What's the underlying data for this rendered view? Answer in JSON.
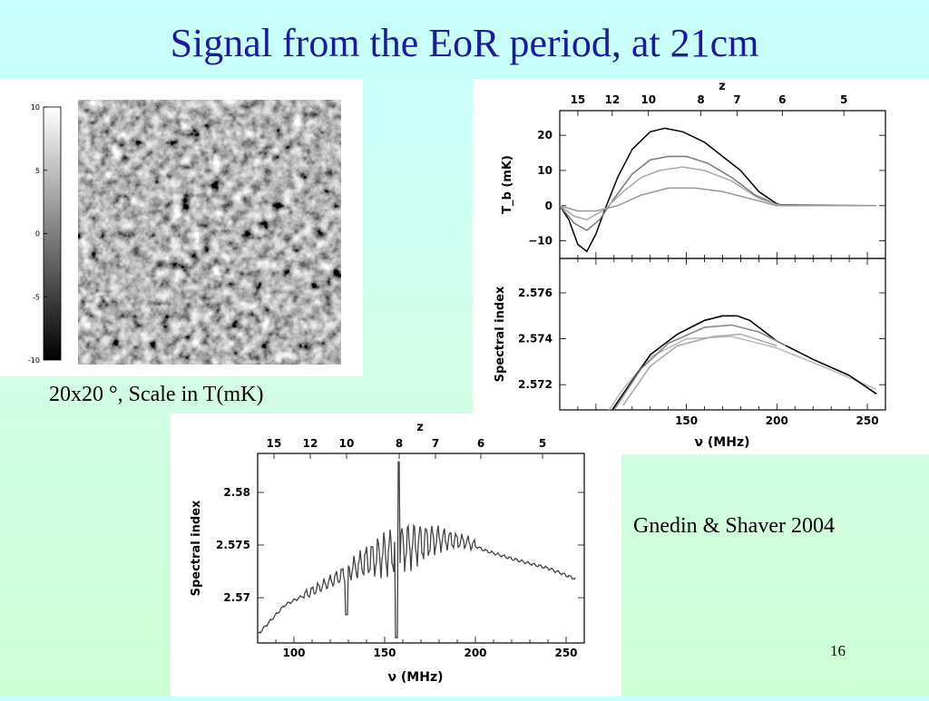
{
  "slide": {
    "title": "Signal from the EoR period, at 21cm",
    "map_caption": "20x20 °, Scale in T(mK)",
    "credit": "Gnedin & Shaver 2004",
    "page_number": "16"
  },
  "chart_data": [
    {
      "type": "heatmap",
      "colorbar": {
        "ticks": [
          "10",
          "5",
          "0",
          "-5",
          "-10"
        ],
        "range": [
          -10,
          10
        ]
      },
      "colormap": "grayscale"
    },
    {
      "type": "line",
      "top_axis": {
        "label": "z",
        "ticks": [
          "15",
          "12",
          "10",
          "8",
          "7",
          "6",
          "5"
        ],
        "tick_freqs": [
          90,
          109,
          129,
          158,
          178,
          203,
          237
        ]
      },
      "xlim": [
        80,
        260
      ],
      "ylabel": "T_b (mK)",
      "ylim": [
        -15,
        27
      ],
      "yticks": [
        "20",
        "10",
        "0",
        "−10"
      ],
      "ytick_values": [
        20,
        10,
        0,
        -10
      ],
      "series": [
        {
          "color": "#000000",
          "points": [
            [
              80,
              0
            ],
            [
              85,
              -4
            ],
            [
              90,
              -11
            ],
            [
              95,
              -13
            ],
            [
              100,
              -8
            ],
            [
              105,
              -1
            ],
            [
              112,
              8
            ],
            [
              120,
              16
            ],
            [
              130,
              21
            ],
            [
              138,
              22
            ],
            [
              148,
              21
            ],
            [
              160,
              18
            ],
            [
              170,
              14
            ],
            [
              180,
              10
            ],
            [
              190,
              4
            ],
            [
              200,
              0.5
            ],
            [
              205,
              0
            ],
            [
              255,
              0
            ]
          ]
        },
        {
          "color": "#777777",
          "points": [
            [
              80,
              0
            ],
            [
              88,
              -5
            ],
            [
              95,
              -7
            ],
            [
              102,
              -4
            ],
            [
              110,
              2
            ],
            [
              120,
              9
            ],
            [
              130,
              13
            ],
            [
              140,
              14
            ],
            [
              150,
              14
            ],
            [
              162,
              12
            ],
            [
              175,
              8
            ],
            [
              188,
              3
            ],
            [
              200,
              0.3
            ],
            [
              255,
              0
            ]
          ]
        },
        {
          "color": "#a8a8a8",
          "points": [
            [
              80,
              0
            ],
            [
              88,
              -3
            ],
            [
              95,
              -4
            ],
            [
              105,
              -1
            ],
            [
              115,
              4
            ],
            [
              125,
              8
            ],
            [
              135,
              10
            ],
            [
              148,
              11
            ],
            [
              160,
              10
            ],
            [
              175,
              7
            ],
            [
              190,
              2
            ],
            [
              202,
              0
            ],
            [
              255,
              0
            ]
          ]
        },
        {
          "color": "#999999",
          "points": [
            [
              80,
              0
            ],
            [
              90,
              -1.5
            ],
            [
              100,
              -1.5
            ],
            [
              112,
              0
            ],
            [
              125,
              3
            ],
            [
              140,
              5
            ],
            [
              155,
              5
            ],
            [
              170,
              4
            ],
            [
              185,
              2
            ],
            [
              200,
              0
            ],
            [
              255,
              0
            ]
          ]
        }
      ]
    },
    {
      "type": "line",
      "xlabel": "ν (MHz)",
      "xlim": [
        80,
        260
      ],
      "xticks": [
        "150",
        "200",
        "250"
      ],
      "xtick_values": [
        150,
        200,
        250
      ],
      "ylabel": "Spectral index",
      "ylim": [
        2.5709,
        2.5775
      ],
      "yticks": [
        "2.576",
        "2.574",
        "2.572"
      ],
      "ytick_values": [
        2.576,
        2.574,
        2.572
      ],
      "series": [
        {
          "color": "#bbbbbb",
          "points": [
            [
              102,
              2.5703
            ],
            [
              115,
              2.5718
            ],
            [
              130,
              2.5732
            ],
            [
              150,
              2.574
            ],
            [
              175,
              2.5741
            ],
            [
              200,
              2.5736
            ],
            [
              225,
              2.5728
            ],
            [
              255,
              2.5718
            ]
          ]
        },
        {
          "color": "#000000",
          "points": [
            [
              103,
              2.5702
            ],
            [
              115,
              2.5716
            ],
            [
              130,
              2.5733
            ],
            [
              145,
              2.5742
            ],
            [
              160,
              2.5748
            ],
            [
              170,
              2.575
            ],
            [
              178,
              2.575
            ],
            [
              185,
              2.5748
            ],
            [
              200,
              2.5739
            ],
            [
              220,
              2.5731
            ],
            [
              240,
              2.5724
            ],
            [
              255,
              2.5716
            ]
          ]
        },
        {
          "color": "#888888",
          "points": [
            [
              110,
              2.5709
            ],
            [
              125,
              2.5727
            ],
            [
              140,
              2.5738
            ],
            [
              160,
              2.5745
            ],
            [
              175,
              2.5746
            ],
            [
              190,
              2.5743
            ],
            [
              205,
              2.5737
            ]
          ]
        },
        {
          "color": "#aaaaaa",
          "points": [
            [
              115,
              2.5711
            ],
            [
              130,
              2.5728
            ],
            [
              145,
              2.5737
            ],
            [
              165,
              2.5741
            ],
            [
              180,
              2.5742
            ],
            [
              200,
              2.5737
            ]
          ]
        }
      ]
    },
    {
      "type": "line",
      "top_axis": {
        "label": "z",
        "ticks": [
          "15",
          "12",
          "10",
          "8",
          "7",
          "6",
          "5"
        ],
        "tick_freqs": [
          89,
          109,
          129,
          158,
          178,
          203,
          237
        ]
      },
      "xlabel": "ν (MHz)",
      "xlim": [
        80,
        260
      ],
      "xticks": [
        "100",
        "150",
        "200",
        "250"
      ],
      "xtick_values": [
        100,
        150,
        200,
        250
      ],
      "ylabel": "Spectral index",
      "ylim": [
        2.5657,
        2.5837
      ],
      "yticks": [
        "2.58",
        "2.575",
        "2.57"
      ],
      "ytick_values": [
        2.58,
        2.575,
        2.57
      ],
      "series": [
        {
          "color": "#444444",
          "trend": [
            [
              80,
              2.5665
            ],
            [
              95,
              2.5693
            ],
            [
              110,
              2.5706
            ],
            [
              125,
              2.572
            ],
            [
              140,
              2.5735
            ],
            [
              160,
              2.5748
            ],
            [
              180,
              2.5756
            ],
            [
              195,
              2.5753
            ],
            [
              205,
              2.5745
            ],
            [
              220,
              2.5737
            ],
            [
              240,
              2.5728
            ],
            [
              255,
              2.5718
            ]
          ]
        }
      ]
    }
  ]
}
